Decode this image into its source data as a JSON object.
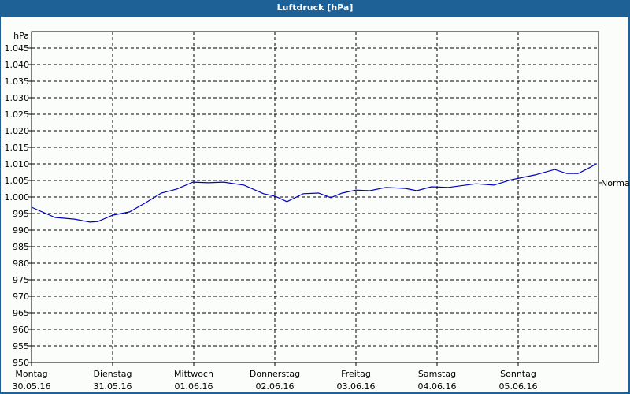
{
  "window": {
    "title": "Luftdruck [hPa]"
  },
  "chart_data": {
    "type": "line",
    "title": "Luftdruck [hPa]",
    "ylabel": "hPa",
    "xlabel": "",
    "ylim": [
      950,
      1050
    ],
    "y_ticks": [
      "950",
      "955",
      "960",
      "965",
      "970",
      "975",
      "980",
      "985",
      "990",
      "995",
      "1.000",
      "1.005",
      "1.010",
      "1.015",
      "1.020",
      "1.025",
      "1.030",
      "1.035",
      "1.040",
      "1.045"
    ],
    "x_ticks": [
      {
        "day": "Montag",
        "date": "30.05.16"
      },
      {
        "day": "Dienstag",
        "date": "31.05.16"
      },
      {
        "day": "Mittwoch",
        "date": "01.06.16"
      },
      {
        "day": "Donnerstag",
        "date": "02.06.16"
      },
      {
        "day": "Freitag",
        "date": "03.06.16"
      },
      {
        "day": "Samstag",
        "date": "04.06.16"
      },
      {
        "day": "Sonntag",
        "date": "05.06.16"
      }
    ],
    "grid": true,
    "reference_label": "Normal",
    "reference_value": 1004.3,
    "series": [
      {
        "name": "Luftdruck",
        "color": "#0000c0",
        "x_days": [
          0,
          0.29,
          0.53,
          0.72,
          0.82,
          1.0,
          1.21,
          1.41,
          1.6,
          1.79,
          1.99,
          2.18,
          2.37,
          2.62,
          2.86,
          3.01,
          3.15,
          3.35,
          3.54,
          3.69,
          3.83,
          4.0,
          4.17,
          4.37,
          4.61,
          4.75,
          4.93,
          5.14,
          5.48,
          5.7,
          5.91,
          6.01,
          6.21,
          6.45,
          6.6,
          6.74,
          6.89,
          6.96
        ],
        "values": [
          996.9,
          993.8,
          993.3,
          992.4,
          992.6,
          994.5,
          995.5,
          998.3,
          1001.2,
          1002.4,
          1004.5,
          1004.3,
          1004.5,
          1003.6,
          1001.0,
          1000.2,
          998.6,
          1001.0,
          1001.2,
          999.8,
          1001.2,
          1002.1,
          1001.9,
          1002.9,
          1002.6,
          1001.9,
          1003.1,
          1002.9,
          1004.0,
          1003.6,
          1005.2,
          1005.7,
          1006.7,
          1008.3,
          1007.1,
          1007.1,
          1009.0,
          1010.0
        ]
      }
    ]
  }
}
